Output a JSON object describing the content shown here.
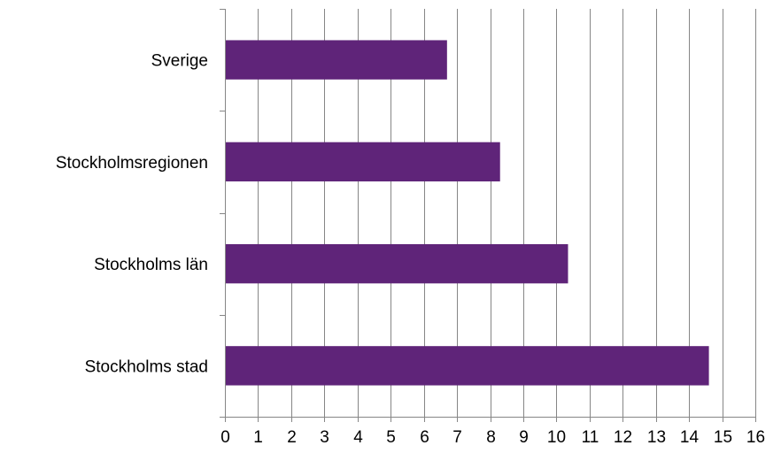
{
  "chart_data": {
    "type": "bar",
    "orientation": "horizontal",
    "categories": [
      "Sverige",
      "Stockholmsregionen",
      "Stockholms län",
      "Stockholms stad"
    ],
    "values": [
      6.7,
      8.3,
      10.35,
      14.6
    ],
    "xlim": [
      0,
      16
    ],
    "xticks": [
      "0",
      "1",
      "2",
      "3",
      "4",
      "5",
      "6",
      "7",
      "8",
      "9",
      "10",
      "11",
      "12",
      "13",
      "14",
      "15",
      "16"
    ],
    "title": "",
    "xlabel": "",
    "ylabel": "",
    "grid": "vertical",
    "legend": "none",
    "bar_color": "#5F2479"
  }
}
